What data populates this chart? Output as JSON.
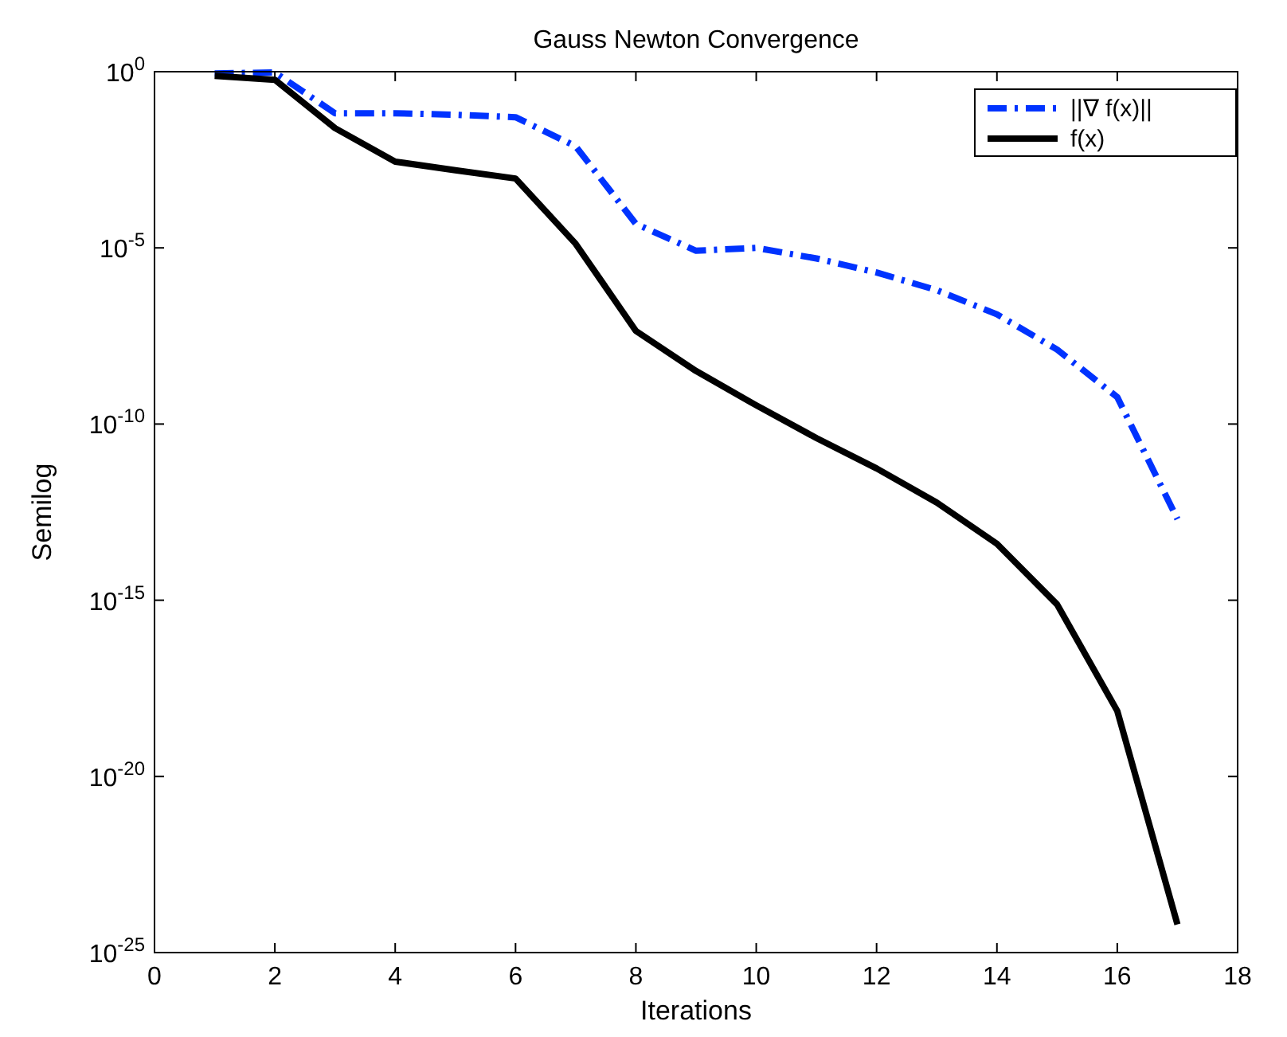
{
  "chart_data": {
    "type": "line",
    "title": "Gauss Newton Convergence",
    "xlabel": "Iterations",
    "ylabel": "Semilog",
    "x": [
      1,
      2,
      3,
      4,
      5,
      6,
      7,
      8,
      9,
      10,
      11,
      12,
      13,
      14,
      15,
      16,
      17
    ],
    "series": [
      {
        "name": "||∇ f(x)||",
        "color": "#0033ff",
        "line_style": "dashdot",
        "values": [
          0.89,
          0.95,
          0.066,
          0.066,
          0.06,
          0.051,
          0.0076,
          4.8e-05,
          8.3e-06,
          1e-05,
          5e-06,
          2e-06,
          6.3e-07,
          1.3e-07,
          1.3e-08,
          5.8e-10,
          2e-13
        ]
      },
      {
        "name": "f(x)",
        "color": "#000000",
        "line_style": "solid",
        "values": [
          0.76,
          0.59,
          0.025,
          0.0028,
          0.0016,
          0.00093,
          1.3e-05,
          4.4e-08,
          3.2e-09,
          3.4e-10,
          4e-11,
          5.5e-12,
          5.9e-13,
          4e-14,
          7.6e-16,
          7.2e-19,
          6.3e-25
        ]
      }
    ],
    "log": "y",
    "xlim": [
      0,
      18
    ],
    "xticks": [
      0,
      2,
      4,
      6,
      8,
      10,
      12,
      14,
      16,
      18
    ],
    "ylim": [
      1e-25,
      1
    ],
    "yticks": [
      {
        "value": 1,
        "label": "10$^{0}$"
      },
      {
        "value": 1e-05,
        "label": "10$^{-5}$"
      },
      {
        "value": 1e-10,
        "label": "10$^{-10}$"
      },
      {
        "value": 1e-15,
        "label": "10$^{-15}$"
      },
      {
        "value": 1e-20,
        "label": "10$^{-20}$"
      },
      {
        "value": 1e-25,
        "label": "10$^{-25}$"
      }
    ],
    "grid": false,
    "legend": "top right",
    "marker": "none"
  }
}
